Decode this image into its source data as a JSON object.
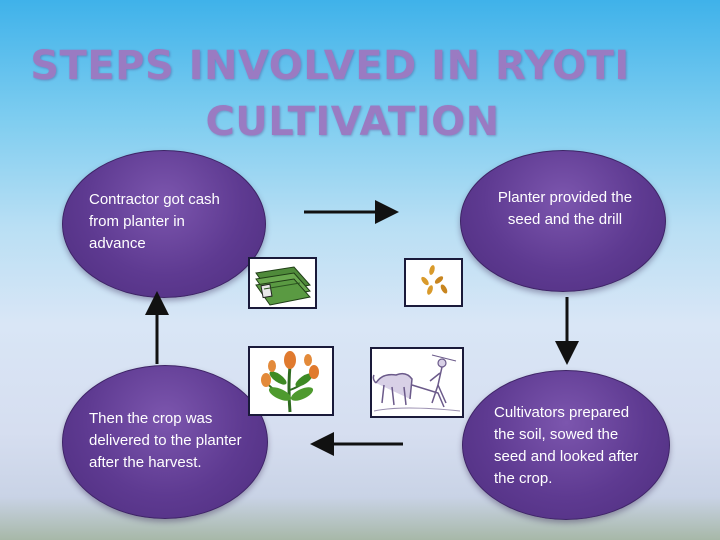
{
  "slide": {
    "title_line1": "STEPS INVOLVED IN RYOTI",
    "title_line2": "CULTIVATION"
  },
  "steps": [
    {
      "id": "contractor",
      "text": "Contractor  got cash from planter in advance"
    },
    {
      "id": "planter",
      "text": "Planter provided the seed and the drill"
    },
    {
      "id": "cultivators",
      "text": "Cultivators prepared the soil, sowed the seed and looked after the crop."
    },
    {
      "id": "delivery",
      "text": "Then the crop was delivered to the planter after the harvest."
    }
  ],
  "images": [
    "money-icon",
    "seed-icon",
    "plant-icon",
    "plough-icon"
  ],
  "colors": {
    "title": "#9a7bc2",
    "oval": "#5e3a91",
    "arrow": "#111111"
  }
}
